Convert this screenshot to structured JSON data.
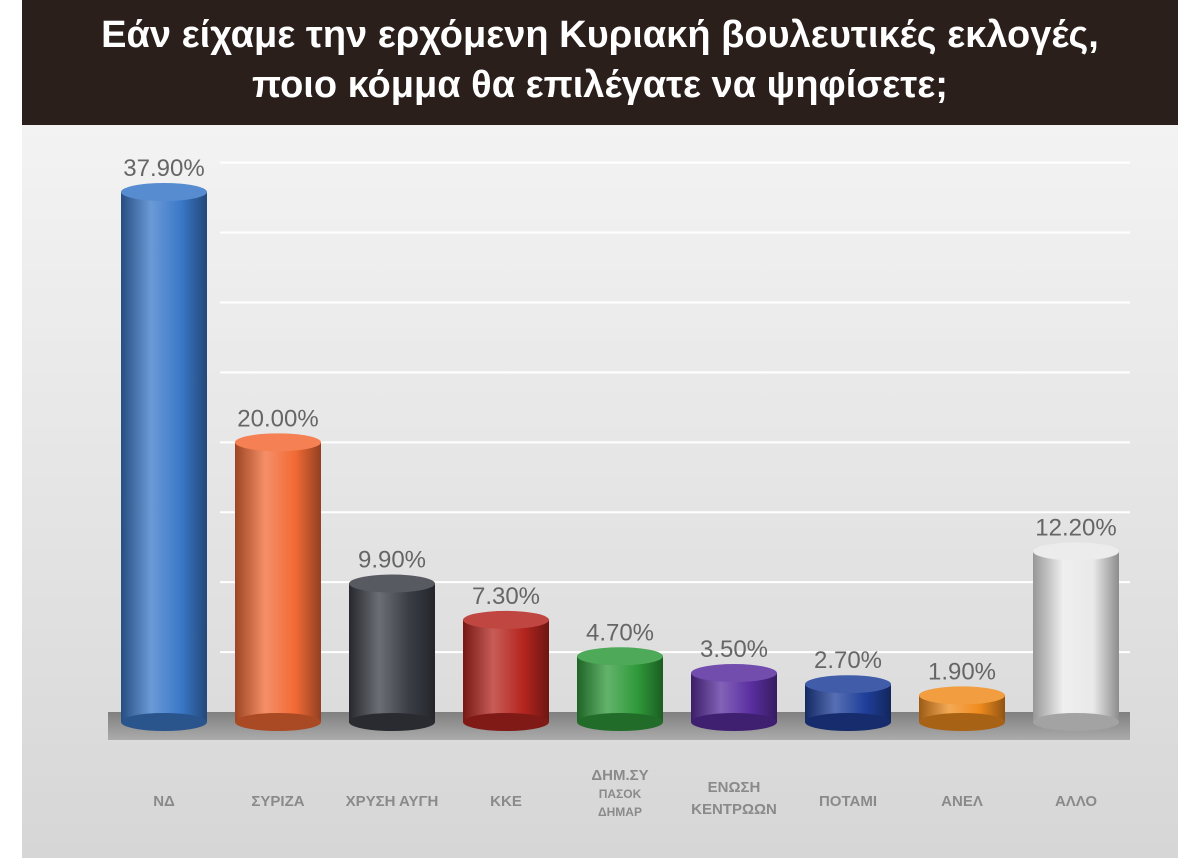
{
  "chart_data": {
    "type": "bar",
    "title_lines": [
      "Εάν είχαμε την ερχόμενη Κυριακή βουλευτικές εκλογές,",
      "ποιο κόμμα θα επιλέγατε να ψηφίσετε;"
    ],
    "categories": [
      [
        "ΝΔ"
      ],
      [
        "ΣΥΡΙΖΑ"
      ],
      [
        "ΧΡΥΣΗ ΑΥΓΗ"
      ],
      [
        "ΚΚΕ"
      ],
      [
        "ΔΗΜ.ΣΥ",
        "ΠΑΣΟΚ",
        "ΔΗΜΑΡ"
      ],
      [
        "ΕΝΩΣΗ",
        "ΚΕΝΤΡΩΩΝ"
      ],
      [
        "ΠΟΤΑΜΙ"
      ],
      [
        "ΑΝΕΛ"
      ],
      [
        "ΑΛΛΟ"
      ]
    ],
    "values": [
      37.9,
      20.0,
      9.9,
      7.3,
      4.7,
      3.5,
      2.7,
      1.9,
      12.2
    ],
    "data_labels": [
      "37.90%",
      "20.00%",
      "9.90%",
      "7.30%",
      "4.70%",
      "3.50%",
      "2.70%",
      "1.90%",
      "12.20%"
    ],
    "colors": [
      "#3a78c8",
      "#f26a35",
      "#3a3d45",
      "#b5251f",
      "#2f9a3a",
      "#5a2ea0",
      "#1f3f9a",
      "#f08c1e",
      "#e9e9e9"
    ],
    "ylim": [
      0,
      40
    ],
    "grid": true,
    "legend": "none"
  }
}
